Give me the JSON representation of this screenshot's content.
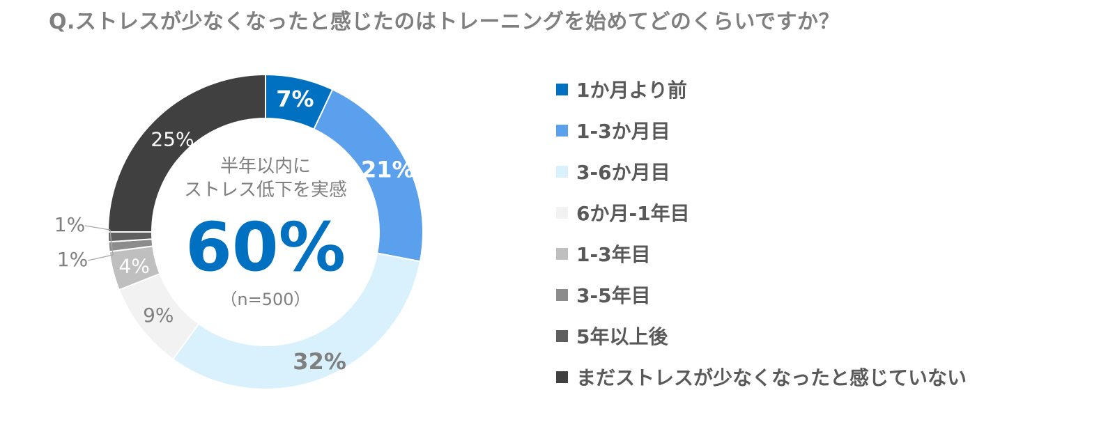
{
  "chart_data": {
    "type": "pie",
    "title": "Q.ストレスが少なくなったと感じたのはトレーニングを始めてどのくらいですか？",
    "categories": [
      "1か月より前",
      "1-3か月目",
      "3-6か月目",
      "6か月-1年目",
      "1-3年目",
      "3-5年目",
      "5年以上後",
      "まだストレスが少なくなったと感じていない"
    ],
    "values": [
      7,
      21,
      32,
      9,
      4,
      1,
      1,
      25
    ],
    "value_labels": [
      "7%",
      "21%",
      "32%",
      "9%",
      "4%",
      "1%",
      "1%",
      "25%"
    ],
    "colors": [
      "#0070c0",
      "#5aa0ec",
      "#d8f1fc",
      "#f2f2f2",
      "#bfbfbf",
      "#8c8c8c",
      "#5f5f5f",
      "#404040"
    ],
    "label_colors": [
      "#ffffff",
      "#ffffff",
      "#7f7f7f",
      "#7f7f7f",
      "#ffffff",
      "#7f7f7f",
      "#7f7f7f",
      "#ffffff"
    ],
    "label_bold": [
      true,
      true,
      true,
      false,
      false,
      false,
      false,
      false
    ],
    "legend_position": "right",
    "center": {
      "line1": "半年以内に",
      "line2": "ストレス低下を実感",
      "value": "60%",
      "n": "（n=500）"
    }
  }
}
